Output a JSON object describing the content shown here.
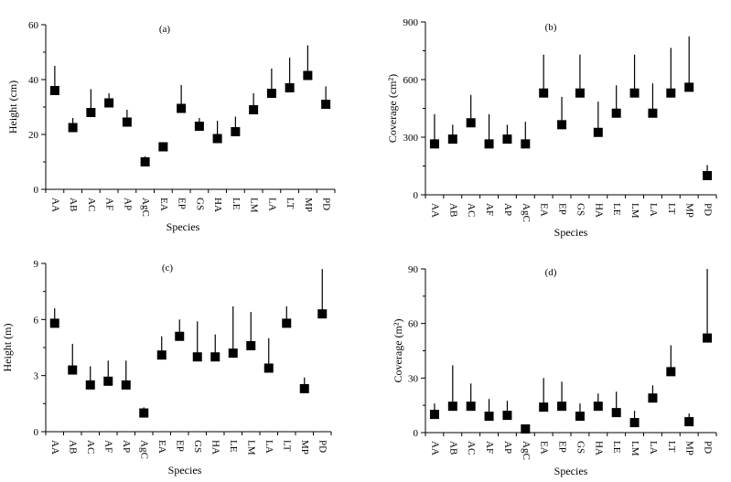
{
  "chart_data": [
    {
      "type": "scatter",
      "panel_label": "(a)",
      "title": "",
      "xlabel": "Species",
      "ylabel": "Height (cm)",
      "ylim": [
        0,
        60
      ],
      "yticks": [
        "0",
        "20",
        "40",
        "60"
      ],
      "categories": [
        "AA",
        "AB",
        "AC",
        "AF",
        "AP",
        "AgC",
        "EA",
        "EP",
        "GS",
        "HA",
        "LE",
        "LM",
        "LA",
        "LT",
        "MP",
        "PD"
      ],
      "values": [
        36,
        22.5,
        28,
        31.5,
        24.5,
        10,
        15.5,
        29.5,
        23,
        18.5,
        21,
        29,
        35,
        37,
        41.5,
        31
      ],
      "error_upper": [
        45,
        26,
        36.5,
        35,
        29,
        12,
        17,
        38,
        26,
        25,
        26.5,
        35,
        44,
        48,
        52.5,
        37.5
      ]
    },
    {
      "type": "scatter",
      "panel_label": "(b)",
      "title": "",
      "xlabel": "Species",
      "ylabel": "Coverage (cm²)",
      "ylim": [
        0,
        900
      ],
      "yticks": [
        "0",
        "300",
        "600",
        "900"
      ],
      "categories": [
        "AA",
        "AB",
        "AC",
        "AF",
        "AP",
        "AgC",
        "EA",
        "EP",
        "GS",
        "HA",
        "LE",
        "LM",
        "LA",
        "LT",
        "MP",
        "PD"
      ],
      "values": [
        265,
        290,
        375,
        265,
        290,
        265,
        530,
        365,
        530,
        325,
        425,
        530,
        425,
        530,
        560,
        100
      ],
      "error_upper": [
        420,
        365,
        520,
        420,
        365,
        380,
        730,
        510,
        730,
        485,
        570,
        730,
        580,
        765,
        825,
        155
      ]
    },
    {
      "type": "scatter",
      "panel_label": "(c)",
      "title": "",
      "xlabel": "Species",
      "ylabel": "Height (m)",
      "ylim": [
        0,
        9
      ],
      "yticks": [
        "0",
        "3",
        "6",
        "9"
      ],
      "categories": [
        "AA",
        "AB",
        "AC",
        "AF",
        "AP",
        "AgC",
        "EA",
        "EP",
        "GS",
        "HA",
        "LE",
        "LM",
        "LA",
        "LT",
        "MP",
        "PD"
      ],
      "values": [
        5.8,
        3.3,
        2.5,
        2.7,
        2.5,
        1.0,
        4.1,
        5.1,
        4.0,
        4.0,
        4.2,
        4.6,
        3.4,
        5.8,
        2.3,
        6.3
      ],
      "error_upper": [
        6.6,
        4.7,
        3.5,
        3.8,
        3.8,
        1.3,
        5.1,
        6.0,
        5.9,
        5.2,
        6.7,
        6.4,
        5.0,
        6.7,
        2.9,
        8.7
      ]
    },
    {
      "type": "scatter",
      "panel_label": "(d)",
      "title": "",
      "xlabel": "Species",
      "ylabel": "Coverage (m²)",
      "ylim": [
        0,
        90
      ],
      "yticks": [
        "0",
        "30",
        "60",
        "90"
      ],
      "categories": [
        "AA",
        "AB",
        "AC",
        "AF",
        "AP",
        "AgC",
        "EA",
        "EP",
        "GS",
        "HA",
        "LE",
        "LM",
        "LA",
        "LT",
        "MP",
        "PD"
      ],
      "values": [
        10,
        14.5,
        14.5,
        9,
        9.5,
        2,
        14,
        14.5,
        9,
        14.5,
        11,
        5.5,
        19,
        33.5,
        6,
        52
      ],
      "error_upper": [
        16,
        37,
        27,
        18.5,
        17.5,
        3.5,
        30,
        28,
        16,
        21.5,
        22.5,
        12,
        26,
        48,
        10.5,
        90
      ]
    }
  ]
}
